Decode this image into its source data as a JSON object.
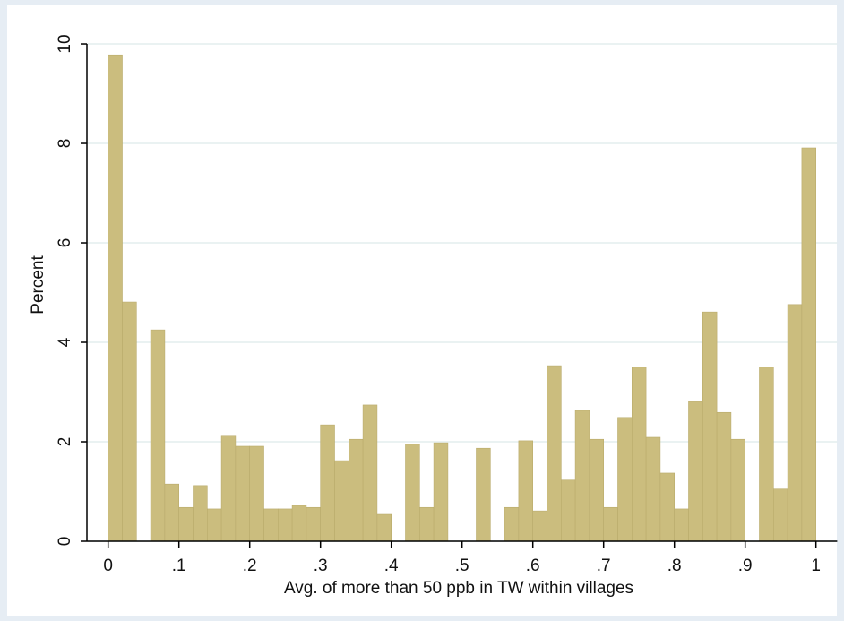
{
  "chart_data": {
    "type": "histogram",
    "x_label": "Avg. of more than 50 ppb in TW within villages",
    "y_label": "Percent",
    "bins": [
      0,
      0.02,
      0.04,
      0.06,
      0.08,
      0.1,
      0.12,
      0.14,
      0.16,
      0.18,
      0.2,
      0.22,
      0.24,
      0.26,
      0.28,
      0.3,
      0.32,
      0.34,
      0.36,
      0.38,
      0.4,
      0.42,
      0.44,
      0.46,
      0.48,
      0.5,
      0.52,
      0.54,
      0.56,
      0.58,
      0.6,
      0.62,
      0.64,
      0.66,
      0.68,
      0.7,
      0.72,
      0.74,
      0.76,
      0.78,
      0.8,
      0.82,
      0.84,
      0.86,
      0.88,
      0.9,
      0.92,
      0.94,
      0.96,
      0.98,
      1
    ],
    "values": [
      9.78,
      4.81,
      0,
      4.25,
      1.15,
      0.68,
      1.12,
      0.65,
      2.13,
      1.91,
      1.91,
      0.65,
      0.65,
      0.72,
      0.68,
      2.34,
      1.62,
      2.05,
      2.74,
      0.54,
      0,
      1.95,
      0.68,
      1.98,
      0,
      0,
      1.87,
      0,
      0.68,
      2.02,
      0.61,
      3.53,
      1.23,
      2.63,
      2.05,
      0.68,
      2.49,
      3.5,
      2.09,
      1.37,
      0.65,
      2.81,
      4.61,
      2.59,
      2.05,
      0,
      3.5,
      1.05,
      4.76,
      7.91
    ],
    "color": "#cbbd7e",
    "xlim": [
      -0.03,
      1.03
    ],
    "ylim": [
      0,
      10.35
    ],
    "xticks": [
      0,
      {
        "value": 0.1,
        "label": ".1"
      },
      {
        "value": 0.2,
        "label": ".2"
      },
      {
        "value": 0.3,
        "label": ".3"
      },
      {
        "value": 0.4,
        "label": ".4"
      },
      {
        "value": 0.5,
        "label": ".5"
      },
      {
        "value": 0.6,
        "label": ".6"
      },
      {
        "value": 0.7,
        "label": ".7"
      },
      {
        "value": 0.8,
        "label": ".8"
      },
      {
        "value": 0.9,
        "label": ".9"
      },
      1
    ],
    "yticks": [
      0,
      2,
      4,
      6,
      8,
      10
    ],
    "grid": true
  }
}
